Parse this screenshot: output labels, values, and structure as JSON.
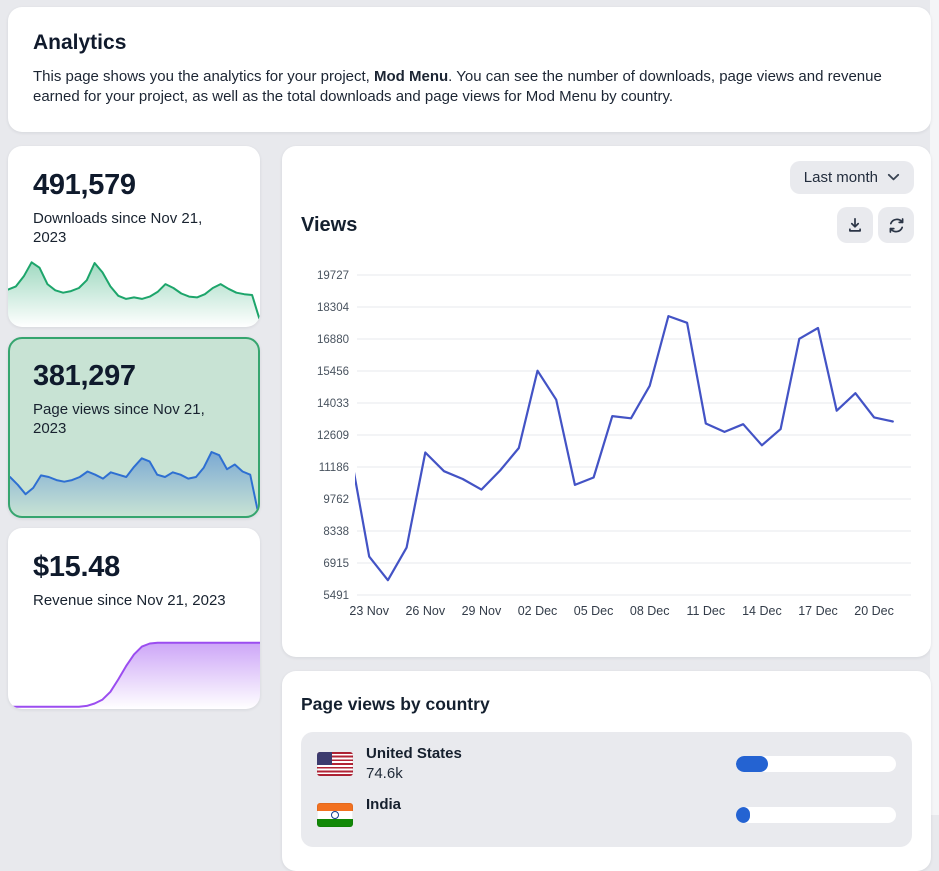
{
  "header": {
    "title": "Analytics",
    "description_before": "This page shows you the analytics for your project, ",
    "project_name": "Mod Menu",
    "description_after": ". You can see the number of downloads, page views and revenue earned for your project, as well as the total downloads and page views for Mod Menu by country."
  },
  "stat_cards": [
    {
      "id": "downloads",
      "value": "491,579",
      "label": "Downloads since Nov 21, 2023",
      "selected": false,
      "accent": "#1da56b",
      "fill_opacity": 0.42,
      "spark": [
        48,
        52,
        65,
        83,
        76,
        55,
        47,
        44,
        46,
        50,
        60,
        82,
        70,
        52,
        40,
        36,
        38,
        36,
        39,
        45,
        55,
        50,
        43,
        39,
        38,
        42,
        50,
        55,
        49,
        44,
        42,
        41,
        8
      ]
    },
    {
      "id": "page-views",
      "value": "381,297",
      "label": "Page views since Nov 21, 2023",
      "selected": true,
      "accent": "#2e6fd2",
      "fill_opacity": 0.5,
      "spark": [
        50,
        40,
        28,
        36,
        52,
        50,
        46,
        44,
        46,
        50,
        57,
        53,
        48,
        56,
        53,
        50,
        63,
        74,
        70,
        53,
        50,
        56,
        53,
        48,
        50,
        62,
        82,
        78,
        60,
        66,
        57,
        53,
        5
      ]
    },
    {
      "id": "revenue",
      "value": "$15.48",
      "label": "Revenue since Nov 21, 2023",
      "selected": false,
      "accent": "#9b4df0",
      "fill_opacity": 0.5,
      "spark": [
        3,
        3,
        3,
        3,
        3,
        3,
        3,
        3,
        3,
        3,
        4,
        7,
        12,
        22,
        38,
        55,
        70,
        80,
        84,
        85,
        85,
        85,
        85,
        85,
        85,
        85,
        85,
        85,
        85,
        85,
        85,
        85,
        85
      ]
    }
  ],
  "views_panel": {
    "title": "Views",
    "range_selector": "Last month",
    "icons": {
      "range": "chevron-down-icon",
      "export": "download-icon",
      "reload": "refresh-icon"
    },
    "chart_data": {
      "type": "line",
      "title": "Views",
      "xlabel": "",
      "ylabel": "",
      "grid": true,
      "line_color": "#4353c5",
      "grid_color": "#e7e8ec",
      "ylim": [
        5491,
        19727
      ],
      "y_ticks": [
        19727,
        18304,
        16880,
        15456,
        14033,
        12609,
        11186,
        9762,
        8338,
        6915,
        5491
      ],
      "x": [
        "22 Nov",
        "23 Nov",
        "24 Nov",
        "25 Nov",
        "26 Nov",
        "27 Nov",
        "28 Nov",
        "29 Nov",
        "30 Nov",
        "01 Dec",
        "02 Dec",
        "03 Dec",
        "04 Dec",
        "05 Dec",
        "06 Dec",
        "07 Dec",
        "08 Dec",
        "09 Dec",
        "10 Dec",
        "11 Dec",
        "12 Dec",
        "13 Dec",
        "14 Dec",
        "15 Dec",
        "16 Dec",
        "17 Dec",
        "18 Dec",
        "19 Dec",
        "20 Dec",
        "21 Dec"
      ],
      "values": [
        11800,
        7200,
        6150,
        7600,
        11830,
        11000,
        10650,
        10180,
        11030,
        12030,
        15470,
        14180,
        10390,
        10720,
        13450,
        13350,
        14800,
        17900,
        17600,
        13120,
        12745,
        13090,
        12150,
        12870,
        16890,
        17370,
        13690,
        14470,
        13390,
        13210
      ],
      "x_tick_labels": [
        "23 Nov",
        "26 Nov",
        "29 Nov",
        "02 Dec",
        "05 Dec",
        "08 Dec",
        "11 Dec",
        "14 Dec",
        "17 Dec",
        "20 Dec"
      ],
      "x_tick_indices": [
        1,
        4,
        7,
        10,
        13,
        16,
        19,
        22,
        25,
        28
      ]
    }
  },
  "countries_panel": {
    "title": "Page views by country",
    "progress_color": "#2463d2",
    "rows": [
      {
        "country": "United States",
        "value": "74.6k",
        "percent": 20,
        "flag": "us"
      },
      {
        "country": "India",
        "value": "",
        "percent": 9,
        "flag": "in"
      }
    ]
  }
}
